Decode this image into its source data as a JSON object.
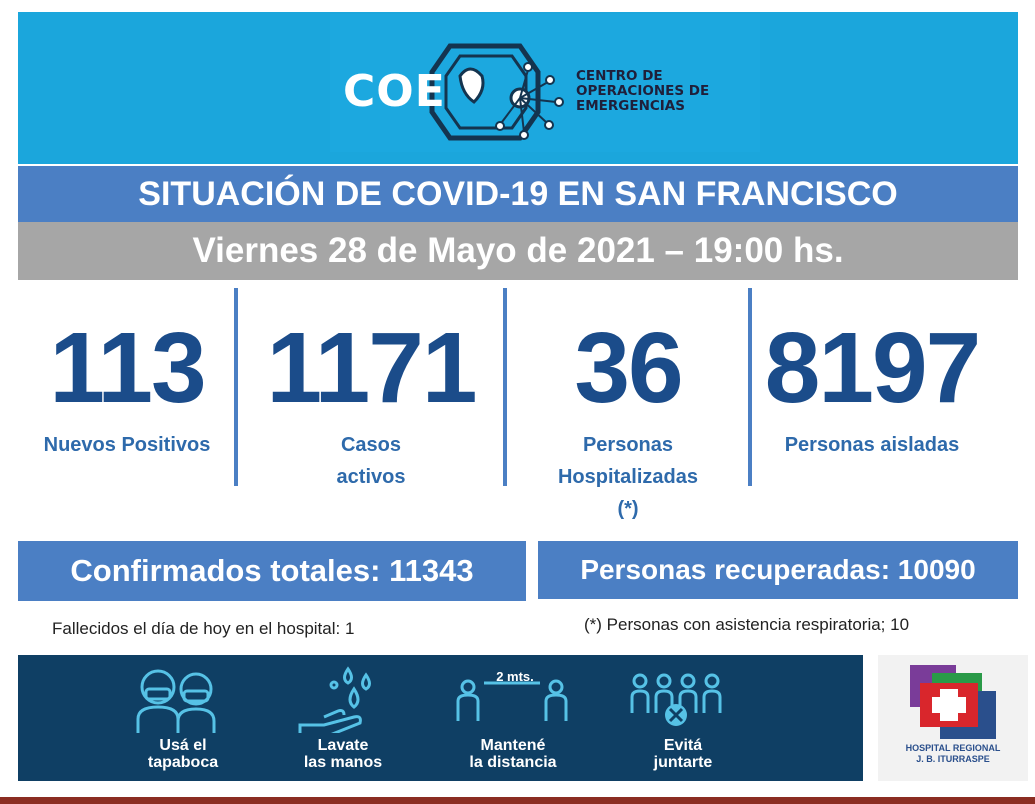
{
  "header": {
    "logo_text": "COE",
    "org_lines": [
      "CENTRO DE",
      "OPERACIONES DE",
      "EMERGENCIAS"
    ]
  },
  "title": "SITUACIÓN DE COVID-19 EN SAN FRANCISCO",
  "date_line": "Viernes 28 de Mayo de 2021 – 19:00 hs.",
  "stats": [
    {
      "value": "113",
      "label_lines": [
        "Nuevos Positivos"
      ]
    },
    {
      "value": "1171",
      "label_lines": [
        "Casos",
        "activos"
      ]
    },
    {
      "value": "36",
      "label_lines": [
        "Personas",
        "Hospitalizadas",
        "(*)"
      ]
    },
    {
      "value": "8197",
      "label_lines": [
        "Personas aisladas"
      ]
    }
  ],
  "totals": {
    "confirmed": "Confirmados totales: 11343",
    "recovered": "Personas recuperadas: 10090"
  },
  "notes": {
    "deaths": "Fallecidos el día de hoy en el hospital: 1",
    "respiratory": "(*) Personas con asistencia respiratoria; 10"
  },
  "prevention": {
    "items": [
      {
        "icon": "mask-people-icon",
        "lines": [
          "Usá el",
          "tapaboca"
        ]
      },
      {
        "icon": "hand-wash-icon",
        "lines": [
          "Lavate",
          "las manos"
        ]
      },
      {
        "icon": "distance-icon",
        "lines": [
          "Mantené",
          "la distancia"
        ],
        "distance_label": "2 mts."
      },
      {
        "icon": "no-gathering-icon",
        "lines": [
          "Evitá",
          "juntarte"
        ]
      }
    ]
  },
  "hospital": {
    "name_lines": [
      "HOSPITAL REGIONAL",
      "J. B. ITURRASPE"
    ]
  },
  "colors": {
    "banner": "#1ba6dc",
    "title_bar": "#4b7fc4",
    "date_bar": "#a6a6a6",
    "stat_numbers": "#1b4c8a",
    "footer": "#0f3f64",
    "bottom_rule": "#8b2d22"
  }
}
